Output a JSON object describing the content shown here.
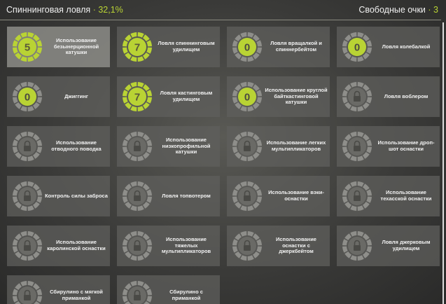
{
  "header": {
    "title": "Спиннинговая ловля",
    "separator": "·",
    "progress": "32,1%",
    "points_label": "Свободные очки",
    "points": 3
  },
  "tiles": [
    {
      "label": "Использование безынерционной катушки",
      "level": 5,
      "selected": true
    },
    {
      "label": "Ловля спиннинговым удилищем",
      "level": 7
    },
    {
      "label": "Ловля вращалкой и спиннербейтом",
      "level": 0
    },
    {
      "label": "Ловля колебалкой",
      "level": 0
    },
    {
      "label": "Джиггинг",
      "level": 0
    },
    {
      "label": "Ловля кастинговым удилищем",
      "level": 7
    },
    {
      "label": "Использование круглой байткастинговой катушки",
      "level": 0
    },
    {
      "label": "Ловля воблером"
    },
    {
      "label": "Использование отводного поводка"
    },
    {
      "label": "Использование низкопрофильной катушки"
    },
    {
      "label": "Использование легких мультипликаторов"
    },
    {
      "label": "Использование дроп-шот оснастки"
    },
    {
      "label": "Контроль силы заброса"
    },
    {
      "label": "Ловля топвотером"
    },
    {
      "label": "Использование вэки-оснастки"
    },
    {
      "label": "Использование техасской оснастки"
    },
    {
      "label": "Использование каролинской оснастки"
    },
    {
      "label": "Использование тяжелых мультипликаторов"
    },
    {
      "label": "Использование оснастки с джеркбейтом"
    },
    {
      "label": "Ловля джерковым удилищем"
    },
    {
      "label": "Сбирулино с мягкой приманкой"
    },
    {
      "label": "Сбирулино с приманкой"
    }
  ]
}
